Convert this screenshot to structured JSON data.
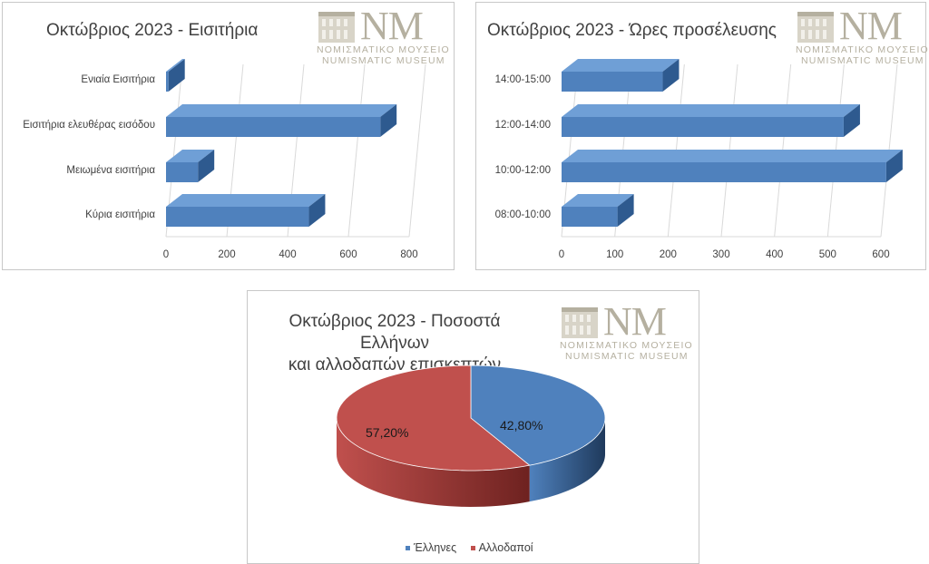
{
  "logo": {
    "mark": "NM",
    "line1": "ΝΟΜΙΣΜΑΤΙΚΟ ΜΟΥΣΕΙΟ",
    "line2": "NUMISMATIC MUSEUM",
    "icon": "museum-building-icon"
  },
  "colors": {
    "bar": "#4f81bd",
    "bar_top": "#6f9fd6",
    "bar_side": "#2e5a8f",
    "greeks": "#4f81bd",
    "foreigners": "#c0504d",
    "axis_text": "#404040",
    "grid": "#d9d9d9"
  },
  "chart_data": [
    {
      "type": "bar",
      "orientation": "horizontal",
      "title": "Οκτώβριος 2023 - Εισιτήρια",
      "categories": [
        "Ενιαία Εισιτήρια",
        "Εισιτήρια ελευθέρας εισόδου",
        "Μειωμένα εισιτήρια",
        "Κύρια εισιτήρια"
      ],
      "values": [
        8,
        705,
        105,
        470
      ],
      "xlim": [
        0,
        800
      ],
      "ticks": [
        "0",
        "200",
        "400",
        "600",
        "800"
      ],
      "grid": true,
      "style": "3d"
    },
    {
      "type": "bar",
      "orientation": "horizontal",
      "title": "Οκτώβριος 2023 - Ώρες προσέλευσης",
      "categories": [
        "14:00-15:00",
        "12:00-14:00",
        "10:00-12:00",
        "08:00-10:00"
      ],
      "values": [
        190,
        530,
        610,
        105
      ],
      "xlim": [
        0,
        600
      ],
      "ticks": [
        "0",
        "100",
        "200",
        "300",
        "400",
        "500",
        "600"
      ],
      "grid": true,
      "style": "3d"
    },
    {
      "type": "pie",
      "title": "Οκτώβριος 2023 - Ποσοστά Ελλήνων και αλλοδαπών επισκεπτών",
      "title_lines": [
        "Οκτώβριος 2023 - Ποσοστά Ελλήνων",
        "και αλλοδαπών επισκεπτών"
      ],
      "slices": [
        {
          "name": "Έλληνες",
          "value": 42.8,
          "label": "42,80%"
        },
        {
          "name": "Αλλοδαποί",
          "value": 57.2,
          "label": "57,20%"
        }
      ],
      "legend": "bottom",
      "style": "3d"
    }
  ]
}
